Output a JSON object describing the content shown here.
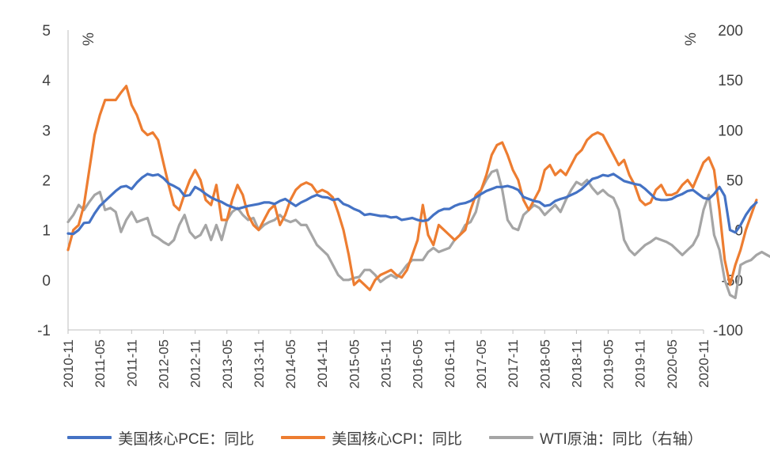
{
  "chart_data": {
    "type": "line",
    "left_unit": "%",
    "right_unit": "%",
    "y_left_range": [
      -1,
      5
    ],
    "y_right_range": [
      -100,
      200
    ],
    "y_left_ticks": [
      "-1",
      "0",
      "1",
      "2",
      "3",
      "4",
      "5"
    ],
    "y_right_ticks": [
      "-100",
      "-50",
      "0",
      "50",
      "100",
      "150",
      "200"
    ],
    "x_tick_labels": [
      "2010-11",
      "2011-05",
      "2011-11",
      "2012-05",
      "2012-11",
      "2013-05",
      "2013-11",
      "2014-05",
      "2014-11",
      "2015-05",
      "2015-11",
      "2016-05",
      "2016-11",
      "2017-05",
      "2017-11",
      "2018-05",
      "2018-11",
      "2019-05",
      "2019-11",
      "2020-05",
      "2020-11"
    ],
    "x_start": "2010-11",
    "legend_position": "bottom",
    "grid": false,
    "series": [
      {
        "name": "美国核心PCE：同比",
        "color": "#4472c4",
        "axis": "left",
        "values": [
          0.93,
          0.92,
          1.0,
          1.14,
          1.15,
          1.33,
          1.48,
          1.58,
          1.68,
          1.78,
          1.86,
          1.88,
          1.82,
          1.95,
          2.05,
          2.12,
          2.09,
          2.11,
          2.04,
          1.93,
          1.88,
          1.82,
          1.68,
          1.7,
          1.86,
          1.8,
          1.72,
          1.65,
          1.6,
          1.56,
          1.5,
          1.46,
          1.42,
          1.45,
          1.48,
          1.5,
          1.52,
          1.55,
          1.55,
          1.52,
          1.58,
          1.62,
          1.55,
          1.48,
          1.55,
          1.6,
          1.66,
          1.7,
          1.66,
          1.65,
          1.6,
          1.62,
          1.52,
          1.48,
          1.42,
          1.38,
          1.3,
          1.32,
          1.3,
          1.28,
          1.28,
          1.25,
          1.26,
          1.2,
          1.22,
          1.24,
          1.2,
          1.18,
          1.2,
          1.3,
          1.38,
          1.42,
          1.42,
          1.48,
          1.52,
          1.54,
          1.58,
          1.65,
          1.72,
          1.78,
          1.82,
          1.86,
          1.86,
          1.88,
          1.85,
          1.8,
          1.66,
          1.62,
          1.58,
          1.56,
          1.48,
          1.5,
          1.58,
          1.62,
          1.65,
          1.7,
          1.75,
          1.82,
          1.92,
          2.02,
          2.05,
          2.1,
          2.08,
          2.12,
          2.05,
          1.98,
          1.95,
          1.92,
          1.9,
          1.82,
          1.72,
          1.62,
          1.6,
          1.6,
          1.62,
          1.68,
          1.72,
          1.78,
          1.8,
          1.72,
          1.64,
          1.62,
          1.72,
          1.86,
          1.68,
          1.0,
          0.95,
          1.1,
          1.3,
          1.45,
          1.55
        ]
      },
      {
        "name": "美国核心CPI：同比",
        "color": "#ed7d31",
        "axis": "left",
        "values": [
          0.6,
          1.0,
          1.1,
          1.5,
          2.2,
          2.9,
          3.3,
          3.6,
          3.6,
          3.6,
          3.75,
          3.88,
          3.5,
          3.3,
          3.0,
          2.9,
          2.95,
          2.8,
          2.35,
          1.9,
          1.5,
          1.4,
          1.72,
          2.0,
          2.2,
          2.0,
          1.6,
          1.5,
          1.9,
          1.2,
          1.2,
          1.6,
          1.9,
          1.7,
          1.3,
          1.1,
          1.0,
          1.2,
          1.4,
          1.5,
          1.1,
          1.3,
          1.6,
          1.8,
          1.9,
          1.95,
          1.9,
          1.75,
          1.8,
          1.75,
          1.65,
          1.35,
          1.0,
          0.5,
          -0.1,
          0.0,
          -0.1,
          -0.2,
          0.0,
          0.1,
          0.15,
          0.2,
          0.1,
          0.05,
          0.2,
          0.5,
          0.8,
          1.5,
          0.9,
          0.7,
          1.1,
          1.0,
          0.9,
          0.8,
          0.9,
          1.0,
          1.4,
          1.7,
          1.8,
          2.1,
          2.5,
          2.7,
          2.75,
          2.5,
          2.2,
          2.0,
          1.6,
          1.4,
          1.6,
          1.8,
          2.2,
          2.3,
          2.1,
          2.2,
          2.1,
          2.3,
          2.5,
          2.6,
          2.8,
          2.9,
          2.95,
          2.9,
          2.7,
          2.5,
          2.3,
          2.4,
          2.1,
          1.9,
          1.6,
          1.5,
          1.55,
          1.8,
          1.9,
          1.7,
          1.7,
          1.75,
          1.9,
          2.0,
          1.85,
          2.1,
          2.35,
          2.45,
          2.2,
          1.4,
          0.4,
          -0.1,
          0.3,
          0.6,
          1.0,
          1.3,
          1.6
        ]
      },
      {
        "name": "WTI原油：同比（右轴）",
        "color": "#a5a5a5",
        "axis": "right",
        "values": [
          8,
          15,
          25,
          20,
          28,
          35,
          38,
          20,
          22,
          18,
          -2,
          10,
          18,
          8,
          10,
          12,
          -5,
          -8,
          -12,
          -15,
          -10,
          5,
          15,
          -2,
          -8,
          -5,
          5,
          -10,
          5,
          -10,
          10,
          18,
          22,
          15,
          10,
          12,
          0,
          5,
          8,
          10,
          15,
          10,
          8,
          10,
          5,
          5,
          -5,
          -15,
          -20,
          -25,
          -35,
          -45,
          -50,
          -50,
          -48,
          -47,
          -40,
          -40,
          -45,
          -52,
          -48,
          -45,
          -48,
          -42,
          -35,
          -30,
          -30,
          -30,
          -22,
          -18,
          -22,
          -20,
          -18,
          -10,
          -5,
          5,
          8,
          18,
          40,
          50,
          58,
          60,
          40,
          10,
          2,
          0,
          15,
          20,
          25,
          22,
          15,
          20,
          25,
          18,
          30,
          40,
          48,
          45,
          50,
          42,
          36,
          40,
          35,
          32,
          20,
          -10,
          -20,
          -25,
          -20,
          -15,
          -12,
          -8,
          -10,
          -12,
          -15,
          -20,
          -25,
          -20,
          -15,
          -5,
          20,
          35,
          -5,
          -20,
          -50,
          -65,
          -68,
          -35,
          -32,
          -30,
          -25,
          -22,
          -25,
          -28,
          -32
        ]
      }
    ]
  },
  "legend": {
    "items": [
      {
        "label": "美国核心PCE：同比",
        "color": "#4472c4"
      },
      {
        "label": "美国核心CPI：同比",
        "color": "#ed7d31"
      },
      {
        "label": "WTI原油：同比（右轴）",
        "color": "#a5a5a5"
      }
    ]
  }
}
